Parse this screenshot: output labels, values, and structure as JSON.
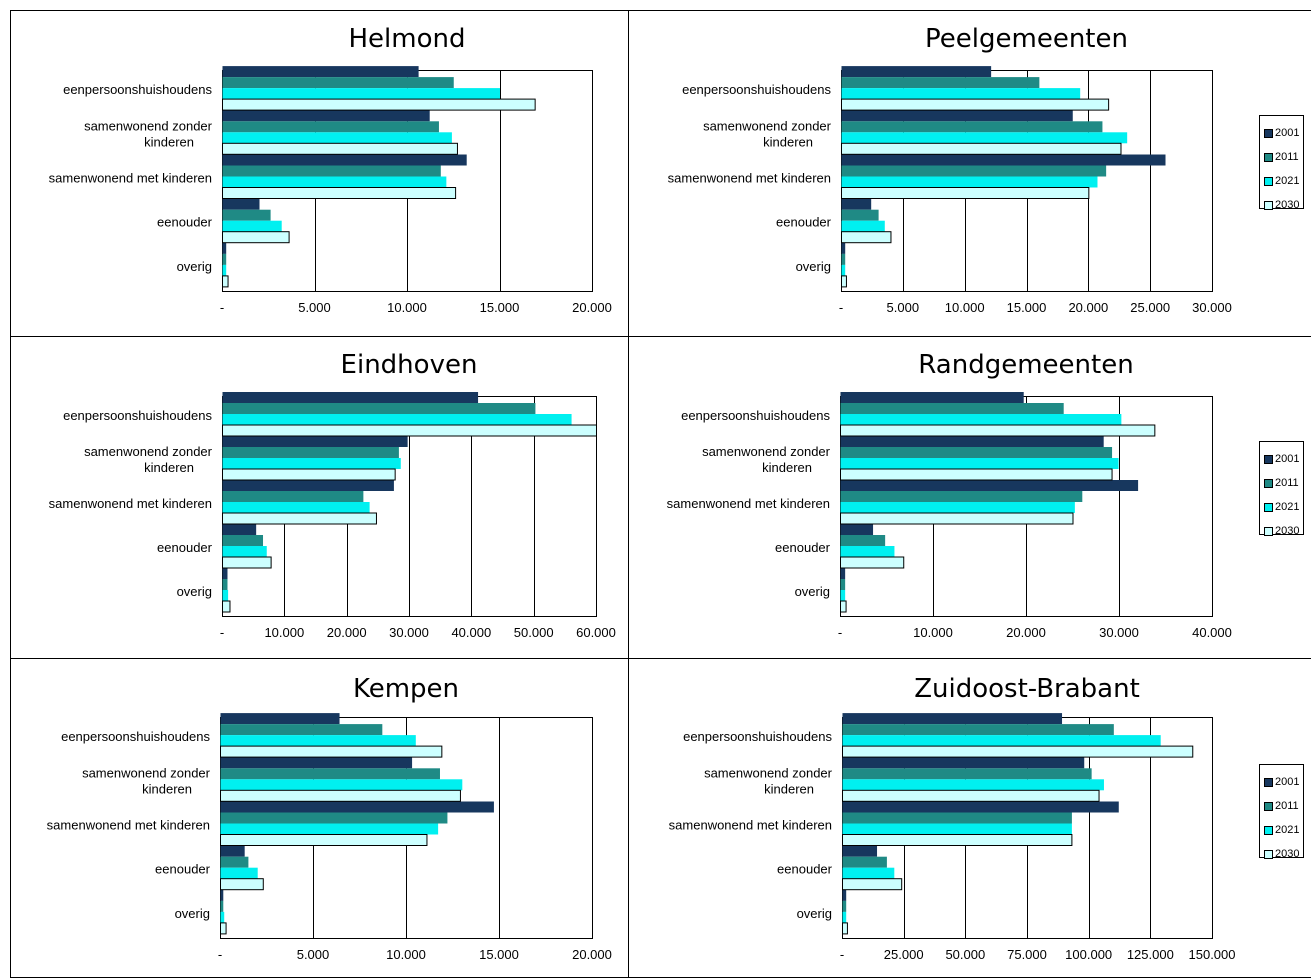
{
  "colors": {
    "2001": "#17375e",
    "2011": "#1f8a85",
    "2021": "#00f0f0",
    "2030": "#ccffff"
  },
  "legend": [
    "2001",
    "2011",
    "2021",
    "2030"
  ],
  "chart_data": [
    {
      "type": "bar",
      "orientation": "horizontal",
      "title": "Helmond",
      "categories": [
        "eenpersoonshuishoudens",
        "samenwonend zonder kinderen",
        "samenwonend met kinderen",
        "eenouder",
        "overig"
      ],
      "xlim": [
        0,
        20000
      ],
      "ticks": [
        "-",
        "5.000",
        "10.000",
        "15.000",
        "20.000"
      ],
      "series": [
        {
          "name": "2001",
          "values": [
            10600,
            11200,
            13200,
            2000,
            200
          ]
        },
        {
          "name": "2011",
          "values": [
            12500,
            11700,
            11800,
            2600,
            200
          ]
        },
        {
          "name": "2021",
          "values": [
            15000,
            12400,
            12100,
            3200,
            200
          ]
        },
        {
          "name": "2030",
          "values": [
            16900,
            12700,
            12600,
            3600,
            300
          ]
        }
      ]
    },
    {
      "type": "bar",
      "orientation": "horizontal",
      "title": "Peelgemeenten",
      "categories": [
        "eenpersoonshuishoudens",
        "samenwonend zonder kinderen",
        "samenwonend met kinderen",
        "eenouder",
        "overig"
      ],
      "xlim": [
        0,
        30000
      ],
      "ticks": [
        "-",
        "5.000",
        "10.000",
        "15.000",
        "20.000",
        "25.000",
        "30.000"
      ],
      "series": [
        {
          "name": "2001",
          "values": [
            12100,
            18700,
            26200,
            2400,
            300
          ]
        },
        {
          "name": "2011",
          "values": [
            16000,
            21100,
            21400,
            3000,
            300
          ]
        },
        {
          "name": "2021",
          "values": [
            19300,
            23100,
            20700,
            3500,
            300
          ]
        },
        {
          "name": "2030",
          "values": [
            21600,
            22600,
            20000,
            4000,
            400
          ]
        }
      ]
    },
    {
      "type": "bar",
      "orientation": "horizontal",
      "title": "Eindhoven",
      "categories": [
        "eenpersoonshuishoudens",
        "samenwonend zonder kinderen",
        "samenwonend met kinderen",
        "eenouder",
        "overig"
      ],
      "xlim": [
        0,
        60000
      ],
      "ticks": [
        "-",
        "10.000",
        "20.000",
        "30.000",
        "40.000",
        "50.000",
        "60.000"
      ],
      "series": [
        {
          "name": "2001",
          "values": [
            41000,
            29700,
            27500,
            5400,
            800
          ]
        },
        {
          "name": "2011",
          "values": [
            50200,
            28300,
            22600,
            6500,
            800
          ]
        },
        {
          "name": "2021",
          "values": [
            56000,
            28600,
            23600,
            7100,
            900
          ]
        },
        {
          "name": "2030",
          "values": [
            60000,
            27700,
            24700,
            7800,
            1200
          ]
        }
      ]
    },
    {
      "type": "bar",
      "orientation": "horizontal",
      "title": "Randgemeenten",
      "categories": [
        "eenpersoonshuishoudens",
        "samenwonend zonder kinderen",
        "samenwonend met kinderen",
        "eenouder",
        "overig"
      ],
      "xlim": [
        0,
        40000
      ],
      "ticks": [
        "-",
        "10.000",
        "20.000",
        "30.000",
        "40.000"
      ],
      "series": [
        {
          "name": "2001",
          "values": [
            19700,
            28300,
            32000,
            3500,
            500
          ]
        },
        {
          "name": "2011",
          "values": [
            24000,
            29200,
            26000,
            4800,
            500
          ]
        },
        {
          "name": "2021",
          "values": [
            30200,
            29900,
            25200,
            5800,
            500
          ]
        },
        {
          "name": "2030",
          "values": [
            33800,
            29200,
            25000,
            6800,
            600
          ]
        }
      ]
    },
    {
      "type": "bar",
      "orientation": "horizontal",
      "title": "Kempen",
      "categories": [
        "eenpersoonshuishoudens",
        "samenwonend zonder kinderen",
        "samenwonend met kinderen",
        "eenouder",
        "overig"
      ],
      "xlim": [
        0,
        20000
      ],
      "ticks": [
        "-",
        "5.000",
        "10.000",
        "15.000",
        "20.000"
      ],
      "series": [
        {
          "name": "2001",
          "values": [
            6400,
            10300,
            14700,
            1300,
            150
          ]
        },
        {
          "name": "2011",
          "values": [
            8700,
            11800,
            12200,
            1500,
            150
          ]
        },
        {
          "name": "2021",
          "values": [
            10500,
            13000,
            11700,
            2000,
            200
          ]
        },
        {
          "name": "2030",
          "values": [
            11900,
            12900,
            11100,
            2300,
            300
          ]
        }
      ]
    },
    {
      "type": "bar",
      "orientation": "horizontal",
      "title": "Zuidoost-Brabant",
      "categories": [
        "eenpersoonshuishoudens",
        "samenwonend zonder kinderen",
        "samenwonend met kinderen",
        "eenouder",
        "overig"
      ],
      "xlim": [
        0,
        150000
      ],
      "ticks": [
        "-",
        "25.000",
        "50.000",
        "75.000",
        "100.000",
        "125.000",
        "150.000"
      ],
      "series": [
        {
          "name": "2001",
          "values": [
            89000,
            98000,
            112000,
            14000,
            1500
          ]
        },
        {
          "name": "2011",
          "values": [
            110000,
            101000,
            93000,
            18000,
            1500
          ]
        },
        {
          "name": "2021",
          "values": [
            129000,
            106000,
            93000,
            21000,
            1500
          ]
        },
        {
          "name": "2030",
          "values": [
            142000,
            104000,
            93000,
            24000,
            2000
          ]
        }
      ]
    }
  ]
}
